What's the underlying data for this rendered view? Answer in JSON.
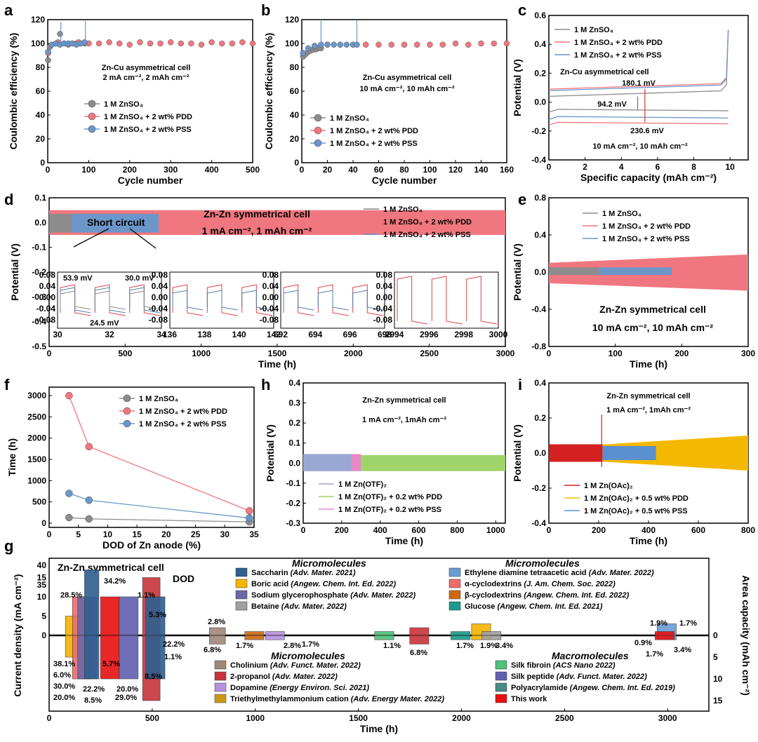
{
  "panels": {
    "a": "a",
    "b": "b",
    "c": "c",
    "d": "d",
    "e": "e",
    "f": "f",
    "g": "g",
    "h": "h",
    "i": "i"
  },
  "chart_data": [
    {
      "id": "a",
      "type": "scatter",
      "xlabel": "Cycle number",
      "ylabel": "Coulombic efficiency (%)",
      "xlim": [
        0,
        500
      ],
      "ylim": [
        0,
        120
      ],
      "xticks": [
        "0",
        "100",
        "200",
        "300",
        "400",
        "500"
      ],
      "yticks": [
        "0",
        "20",
        "40",
        "60",
        "80",
        "100",
        "120"
      ],
      "annotations": [
        "Zn-Cu asymmetrical cell",
        "2 mA cm⁻², 2 mAh cm⁻²"
      ],
      "series": [
        {
          "name": "1 M ZnSO₄",
          "color": "#8c8c8c",
          "x": [
            1,
            5,
            10,
            20,
            30,
            40,
            50,
            60,
            70,
            80,
            90
          ],
          "y": [
            86,
            97,
            99,
            100,
            108,
            100,
            99,
            100,
            100,
            100,
            100
          ]
        },
        {
          "name": "1 M ZnSO₄ + 2 wt% PDD",
          "color": "#f0777f",
          "x": [
            1,
            25,
            50,
            75,
            100,
            125,
            150,
            175,
            200,
            225,
            250,
            275,
            300,
            325,
            350,
            375,
            400,
            425,
            450,
            475,
            500
          ],
          "y": [
            92,
            101,
            100,
            101,
            100,
            100,
            101,
            100,
            99,
            101,
            100,
            100,
            101,
            100,
            100,
            99,
            101,
            100,
            100,
            101,
            100
          ]
        },
        {
          "name": "1 M ZnSO₄ + 2 wt% PSS",
          "color": "#6b96c9",
          "x": [
            1,
            10,
            20,
            30,
            40,
            50,
            60,
            70,
            80,
            90
          ],
          "y": [
            93,
            99,
            100,
            99,
            100,
            100,
            100,
            99,
            100,
            101
          ]
        }
      ]
    },
    {
      "id": "b",
      "type": "scatter",
      "xlabel": "Cycle number",
      "ylabel": "Coulombic efficiency (%)",
      "xlim": [
        0,
        160
      ],
      "ylim": [
        0,
        120
      ],
      "xticks": [
        "0",
        "20",
        "40",
        "60",
        "80",
        "100",
        "120",
        "140",
        "160"
      ],
      "yticks": [
        "0",
        "20",
        "40",
        "60",
        "80",
        "100",
        "120"
      ],
      "annotations": [
        "Zn-Cu asymmetrical cell",
        "10 mA cm⁻², 10 mAh cm⁻²"
      ],
      "series": [
        {
          "name": "1 M ZnSO₄",
          "color": "#8c8c8c",
          "x": [
            1,
            3,
            5,
            7,
            9,
            11,
            13,
            15
          ],
          "y": [
            89,
            91,
            93,
            94,
            95,
            95,
            96,
            96
          ]
        },
        {
          "name": "1 M ZnSO₄ + 2 wt% PDD",
          "color": "#f0777f",
          "x": [
            1,
            10,
            20,
            30,
            40,
            50,
            60,
            70,
            80,
            90,
            100,
            110,
            120,
            130,
            140,
            150,
            160
          ],
          "y": [
            92,
            98,
            99,
            99,
            99,
            99,
            99,
            99,
            99,
            99,
            99,
            99,
            100,
            99,
            100,
            100,
            100
          ]
        },
        {
          "name": "1 M ZnSO₄ + 2 wt% PSS",
          "color": "#6b96c9",
          "x": [
            1,
            5,
            10,
            15,
            20,
            25,
            30,
            35,
            40,
            43
          ],
          "y": [
            92,
            96,
            98,
            99,
            99,
            99,
            99,
            99,
            99,
            99
          ]
        }
      ]
    },
    {
      "id": "c",
      "type": "line",
      "xlabel": "Specific capacity (mAh cm⁻²)",
      "ylabel": "Potential (V)",
      "xlim": [
        0,
        11
      ],
      "ylim": [
        -0.4,
        0.6
      ],
      "xticks": [
        "0",
        "2",
        "4",
        "6",
        "8",
        "10"
      ],
      "yticks": [
        "-0.4",
        "-0.2",
        "0.0",
        "0.2",
        "0.4",
        "0.6"
      ],
      "annotations": [
        "Zn-Cu asymmetrical cell",
        "180.1 mV",
        "94.2 mV",
        "230.6 mV",
        "10 mA cm⁻², 10 mAh cm⁻²"
      ],
      "series": [
        {
          "name": "1 M ZnSO₄",
          "color": "#8c8c8c",
          "charge": 0.04,
          "discharge": -0.05
        },
        {
          "name": "1 M ZnSO₄ + 2 wt% PDD",
          "color": "#f0777f",
          "charge": 0.09,
          "discharge": -0.14
        },
        {
          "name": "1 M ZnSO₄ + 2 wt% PSS",
          "color": "#6b96c9",
          "charge": 0.08,
          "discharge": -0.1
        }
      ]
    },
    {
      "id": "d",
      "type": "line",
      "xlabel": "Time (h)",
      "ylabel": "Potential (V)",
      "xlim": [
        0,
        3000
      ],
      "ylim": [
        -0.5,
        0.1
      ],
      "xticks": [
        "0",
        "500",
        "1000",
        "1500",
        "2000",
        "2500",
        "3000"
      ],
      "yticks": [
        "-0.5",
        "-0.4",
        "-0.3",
        "-0.2",
        "-0.1",
        "0.0",
        "0.1"
      ],
      "annotations": [
        "Zn-Zn symmetrical cell",
        "1 mA cm⁻², 1 mAh cm⁻²",
        "Short circuit"
      ],
      "series": [
        {
          "name": "1 M ZnSO₄",
          "color": "#8c8c8c",
          "end": 150,
          "amp": 0.04
        },
        {
          "name": "1 M ZnSO₄ + 2 wt% PDD",
          "color": "#f0777f",
          "end": 3000,
          "amp": 0.05
        },
        {
          "name": "1 M ZnSO₄ + 2 wt% PSS",
          "color": "#6b96c9",
          "end": 720,
          "amp": 0.04
        }
      ],
      "insets": [
        {
          "xticks": [
            "30",
            "32",
            "34"
          ],
          "xlim": [
            30,
            34
          ],
          "labels": [
            "53.9 mV",
            "30.0 mV",
            "24.5 mV"
          ]
        },
        {
          "xticks": [
            "136",
            "138",
            "140",
            "142"
          ],
          "xlim": [
            136,
            142
          ],
          "labels": []
        },
        {
          "xticks": [
            "692",
            "694",
            "696",
            "698"
          ],
          "xlim": [
            692,
            698
          ],
          "labels": []
        },
        {
          "xticks": [
            "2994",
            "2996",
            "2998",
            "3000"
          ],
          "xlim": [
            2994,
            3000
          ],
          "labels": []
        }
      ],
      "inset_yticks": [
        "0.08",
        "0.04",
        "0.00",
        "-0.04",
        "-0.08"
      ]
    },
    {
      "id": "e",
      "type": "line",
      "xlabel": "Time (h)",
      "ylabel": "Potential (V)",
      "xlim": [
        0,
        300
      ],
      "ylim": [
        -0.8,
        0.8
      ],
      "xticks": [
        "0",
        "100",
        "200",
        "300"
      ],
      "yticks": [
        "-0.8",
        "-0.4",
        "0.0",
        "0.4",
        "0.8"
      ],
      "annotations": [
        "Zn-Zn symmetrical cell",
        "10 mA cm⁻², 10 mAh cm⁻²"
      ],
      "series": [
        {
          "name": "1 M ZnSO₄",
          "color": "#8c8c8c",
          "end": 75
        },
        {
          "name": "1 M ZnSO₄ + 2 wt% PDD",
          "color": "#f0777f",
          "end": 300
        },
        {
          "name": "1 M ZnSO₄ + 2 wt% PSS",
          "color": "#6b96c9",
          "end": 185
        }
      ]
    },
    {
      "id": "f",
      "type": "line",
      "xlabel": "DOD of Zn anode (%)",
      "ylabel": "Time (h)",
      "xlim": [
        0,
        35
      ],
      "ylim": [
        -100,
        3200
      ],
      "xticks": [
        "0",
        "5",
        "10",
        "15",
        "20",
        "25",
        "30",
        "35"
      ],
      "yticks": [
        "0",
        "500",
        "1000",
        "1500",
        "2000",
        "2500",
        "3000"
      ],
      "series": [
        {
          "name": "1 M ZnSO₄",
          "color": "#8c8c8c",
          "x": [
            3.4,
            6.8,
            34.2
          ],
          "y": [
            130,
            100,
            30
          ]
        },
        {
          "name": "1 M ZnSO₄ + 2 wt% PDD",
          "color": "#f0777f",
          "x": [
            3.4,
            6.8,
            34.2
          ],
          "y": [
            3000,
            1800,
            290
          ]
        },
        {
          "name": "1 M ZnSO₄ + 2 wt% PSS",
          "color": "#6b96c9",
          "x": [
            3.4,
            6.8,
            34.2
          ],
          "y": [
            700,
            540,
            120
          ]
        }
      ]
    },
    {
      "id": "h",
      "type": "line",
      "xlabel": "Time (h)",
      "ylabel": "Potential (V)",
      "xlim": [
        0,
        1050
      ],
      "ylim": [
        -0.3,
        0.4
      ],
      "xticks": [
        "0",
        "200",
        "400",
        "600",
        "800",
        "1000"
      ],
      "yticks": [
        "-0.3",
        "-0.2",
        "-0.1",
        "0.0",
        "0.1",
        "0.2",
        "0.3",
        "0.4"
      ],
      "annotations": [
        "Zn-Zn symmetrical cell",
        "1 mA cm⁻², 1mAh cm⁻²"
      ],
      "series": [
        {
          "name": "1 M Zn(OTF)₂",
          "color": "#9aa8d4",
          "end": 250
        },
        {
          "name": "1 M Zn(OTF)₂ + 0.2 wt% PDD",
          "color": "#9ed46a",
          "end": 1050
        },
        {
          "name": "1 M Zn(OTF)₂ + 0.2 wt% PSS",
          "color": "#e58ac6",
          "end": 300
        }
      ]
    },
    {
      "id": "i",
      "type": "line",
      "xlabel": "Time (h)",
      "ylabel": "Potential (V)",
      "xlim": [
        0,
        800
      ],
      "ylim": [
        -0.4,
        0.4
      ],
      "xticks": [
        "0",
        "200",
        "400",
        "600",
        "800"
      ],
      "yticks": [
        "-0.4",
        "-0.2",
        "0.0",
        "0.2",
        "0.4"
      ],
      "annotations": [
        "Zn-Zn symmetrical cell",
        "1 mA cm⁻², 1mAh cm⁻²"
      ],
      "series": [
        {
          "name": "1 M Zn(OAc)₂",
          "color": "#d42020",
          "end": 215
        },
        {
          "name": "1 M Zn(OAc)₂ + 0.5 wt% PDD",
          "color": "#f5b800",
          "end": 800
        },
        {
          "name": "1 M Zn(OAc)₂ + 0.5 wt% PSS",
          "color": "#5a8fd0",
          "end": 430
        }
      ]
    },
    {
      "id": "g",
      "type": "bar",
      "xlabel": "Time (h)",
      "ylabel": "Current density (mA cm⁻²)",
      "ylabel2": "Area capacity (mAh cm⁻²)",
      "xlim": [
        0,
        3200
      ],
      "xticks": [
        "0",
        "500",
        "1000",
        "1500",
        "2000",
        "2500",
        "3000"
      ],
      "yticks": [
        "0",
        "5",
        "10",
        "15",
        "35",
        "40"
      ],
      "y2ticks": [
        "0",
        "5",
        "10",
        "15"
      ],
      "title": "Zn-Zn symmetrical cell",
      "dod_label": "DOD",
      "legend_groups": [
        {
          "header": "Micromolecules",
          "items": [
            {
              "name": "Saccharin",
              "ref": "(Adv. Mater. 2021)",
              "color": "#2f5f8f"
            },
            {
              "name": "Boric acid",
              "ref": "(Angew. Chem. Int. Ed. 2022)",
              "color": "#f5b400"
            },
            {
              "name": "Sodium glycerophosphate",
              "ref": "(Adv. Mater. 2022)",
              "color": "#6a6aa8"
            },
            {
              "name": "Betaine",
              "ref": "(Adv. Mater. 2022)",
              "color": "#a0a0a0"
            }
          ]
        },
        {
          "header": "Micromolecules",
          "items": [
            {
              "name": "Ethylene diamine tetraacetic acid",
              "ref": "(Adv. Mater. 2022)",
              "color": "#6b9bd4"
            },
            {
              "name": "α-cyclodextrins",
              "ref": "(J. Am. Chem. Soc. 2022)",
              "color": "#ef6b6b"
            },
            {
              "name": "β-cyclodextrins",
              "ref": "(Angew. Chem. Int. Ed. 2022)",
              "color": "#cc6a14"
            },
            {
              "name": "Glucose",
              "ref": "(Angew. Chem. Int. Ed. 2021)",
              "color": "#1a9a8a"
            }
          ]
        },
        {
          "header": "Micromolecules",
          "items": [
            {
              "name": "Cholinium",
              "ref": "(Adv. Funct. Mater. 2022)",
              "color": "#a08878"
            },
            {
              "name": "2-propanol",
              "ref": "(Adv. Mater. 2022)",
              "color": "#c8343c"
            },
            {
              "name": "Dopamine",
              "ref": "(Energy Environ. Sci. 2021)",
              "color": "#b890e0"
            },
            {
              "name": "Triethylmethylammonium cation",
              "ref": "(Adv. Energy Mater. 2022)",
              "color": "#c89a14"
            }
          ]
        },
        {
          "header": "Macromolecules",
          "items": [
            {
              "name": "Silk fibroin",
              "ref": "(ACS Nano 2022)",
              "color": "#4fc07a"
            },
            {
              "name": "Silk peptide",
              "ref": "(Adv. Funct. Mater. 2022)",
              "color": "#6060b0"
            },
            {
              "name": "Polyacrylamide",
              "ref": "(Angew. Chem. Int. Ed. 2019)",
              "color": "#4a8a84"
            },
            {
              "name": "This work",
              "ref": "",
              "color": "#e81010"
            }
          ]
        }
      ],
      "bars": [
        {
          "x": 130,
          "w": 60,
          "cd": 5,
          "cap": 5,
          "color": "#f5b400",
          "dod": "38.1%"
        },
        {
          "x": 160,
          "w": 55,
          "cd": 10,
          "cap": 10,
          "color": "#ef6b6b",
          "dod": "30.0%"
        },
        {
          "x": 190,
          "w": 60,
          "cd": 10,
          "cap": 10,
          "color": "#6a6aa8",
          "dod": "22.2%"
        },
        {
          "x": 210,
          "w": 45,
          "cd": 40,
          "cap": 10,
          "color": "#2f5f8f",
          "dod": "34.2%"
        },
        {
          "x": 300,
          "w": 60,
          "cd": 10,
          "cap": 10,
          "color": "#e81010",
          "dod": "34.2%"
        },
        {
          "x": 390,
          "w": 60,
          "cd": 10,
          "cap": 10,
          "color": "#6060b0",
          "dod": "8.5%"
        },
        {
          "x": 500,
          "w": 55,
          "cd": 15,
          "cap": 15,
          "color": "#c8343c",
          "dod": "29.0%"
        },
        {
          "x": 520,
          "w": 60,
          "cd": 10,
          "cap": 10,
          "color": "#2f5f8f",
          "dod": "22.2%"
        },
        {
          "x": 820,
          "w": 50,
          "cd": 2,
          "cap": 2,
          "color": "#a08878",
          "dod": "6.8%"
        },
        {
          "x": 1000,
          "w": 60,
          "cd": 1,
          "cap": 1,
          "color": "#cc6a14",
          "dod": "1.7%"
        },
        {
          "x": 1100,
          "w": 60,
          "cd": 1,
          "cap": 1,
          "color": "#b890e0",
          "dod": "2.8%"
        },
        {
          "x": 1630,
          "w": 60,
          "cd": 1,
          "cap": 1,
          "color": "#4fc07a",
          "dod": "1.1%"
        },
        {
          "x": 1800,
          "w": 60,
          "cd": 2,
          "cap": 2,
          "color": "#c8343c",
          "dod": "6.8%"
        },
        {
          "x": 2000,
          "w": 60,
          "cd": 1,
          "cap": 1,
          "color": "#1a9a8a",
          "dod": "1.7%"
        },
        {
          "x": 2100,
          "w": 60,
          "cd": 3,
          "cap": 1,
          "color": "#f5b400",
          "dod": "1.9%"
        },
        {
          "x": 2150,
          "w": 60,
          "cd": 1,
          "cap": 1,
          "color": "#a0a0a0",
          "dod": "3.4%"
        },
        {
          "x": 3000,
          "w": 60,
          "cd": 3,
          "cap": 1,
          "color": "#6b9bd4",
          "dod": "1.7%"
        },
        {
          "x": 2990,
          "w": 60,
          "cd": 1,
          "cap": 1,
          "color": "#e81010",
          "dod": "3.4%"
        }
      ],
      "dod_labels": [
        "34.2%",
        "28.5%",
        "1.1%",
        "5.3%",
        "38.1%",
        "6.0%",
        "30.0%",
        "20.0%",
        "22.2%",
        "8.5%",
        "5.7%",
        "8.5%",
        "20.0%",
        "29.0%",
        "22.2%",
        "1.1%",
        "2.8%",
        "1.7%",
        "6.8%",
        "1.7%",
        "2.8%",
        "1.1%",
        "6.8%",
        "1.7%",
        "1.9%",
        "3.4%",
        "1.9%",
        "1.7%",
        "0.9%",
        "1.7%",
        "3.4%"
      ]
    }
  ]
}
